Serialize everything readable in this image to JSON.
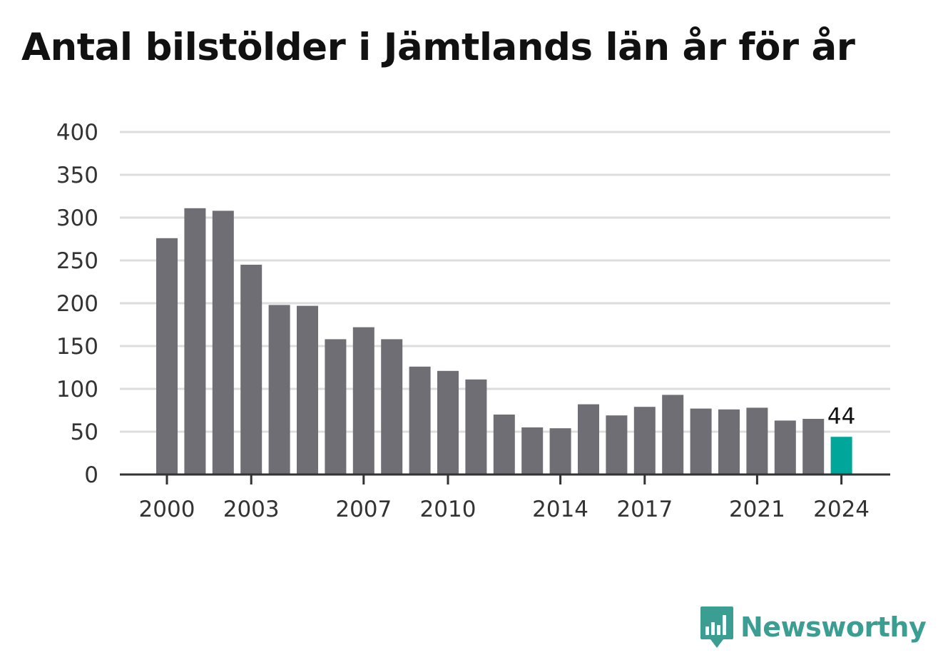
{
  "chart_data": {
    "type": "bar",
    "title": "Antal bilstölder i Jämtlands län år för år",
    "xlabel": "",
    "ylabel": "",
    "ylim": [
      0,
      400
    ],
    "yticks": [
      0,
      50,
      100,
      150,
      200,
      250,
      300,
      350,
      400
    ],
    "x": [
      2000,
      2001,
      2002,
      2003,
      2004,
      2005,
      2006,
      2007,
      2008,
      2009,
      2010,
      2011,
      2012,
      2013,
      2014,
      2015,
      2016,
      2017,
      2018,
      2019,
      2020,
      2021,
      2022,
      2023,
      2024
    ],
    "values": [
      276,
      311,
      308,
      245,
      198,
      197,
      158,
      172,
      158,
      126,
      121,
      111,
      70,
      55,
      54,
      82,
      69,
      79,
      93,
      77,
      76,
      78,
      63,
      65,
      44
    ],
    "xticks": [
      "2000",
      "2003",
      "2007",
      "2010",
      "2014",
      "2017",
      "2021",
      "2024"
    ],
    "highlight": {
      "index": 24,
      "label": "44"
    },
    "grid": true,
    "colors": {
      "bar": "#6f6e74",
      "highlight": "#00a69a",
      "grid": "#dddddd",
      "axis": "#333333"
    }
  },
  "brand": {
    "name": "Newsworthy",
    "icon": "speech-bubble-bar-chart-icon",
    "color": "#3a9e93"
  }
}
